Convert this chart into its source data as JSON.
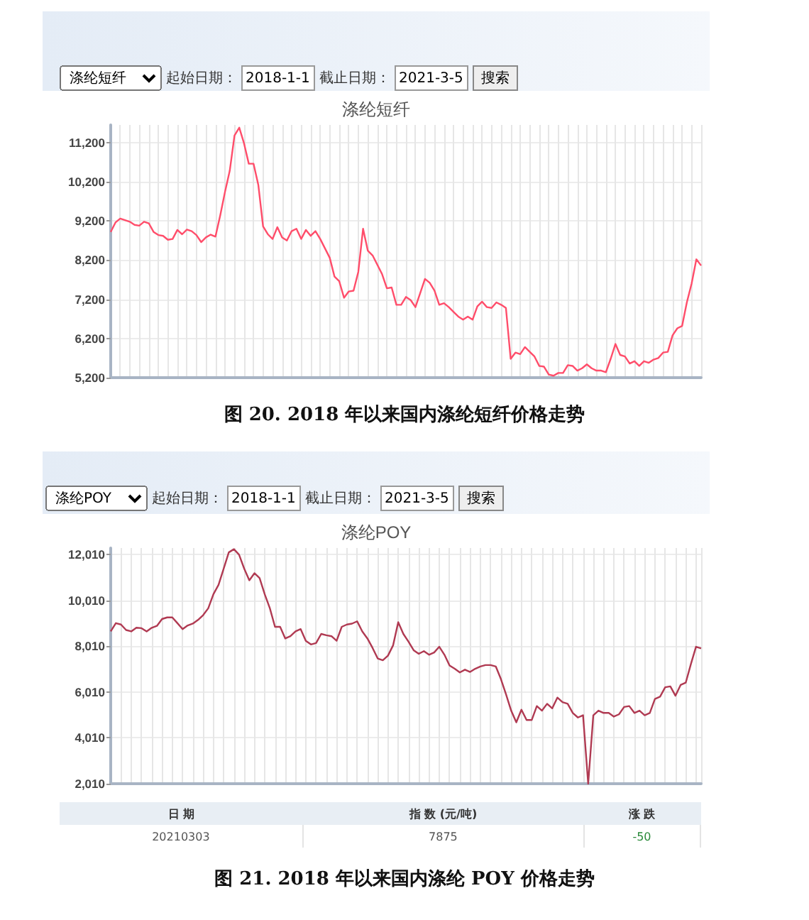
{
  "chart_data": [
    {
      "type": "line",
      "title": "涤纶短纤",
      "categories": [
        null,
        null,
        null,
        null,
        null,
        null,
        null,
        null,
        null,
        null,
        null,
        null,
        null,
        null,
        null,
        null,
        null,
        null,
        null,
        null,
        null,
        null,
        null,
        null,
        null,
        null,
        null,
        null,
        null,
        null,
        null,
        null,
        null,
        null,
        null,
        null,
        null,
        null,
        null,
        null,
        null,
        null,
        null,
        null,
        null,
        null,
        null,
        null,
        null,
        null,
        null,
        null,
        null,
        null,
        null,
        null,
        null,
        null,
        null,
        null,
        null,
        null,
        null,
        null,
        null,
        null,
        null,
        null,
        null,
        null,
        null,
        null,
        null,
        null,
        null,
        null,
        null,
        null,
        null,
        null,
        null,
        null,
        null,
        null,
        null,
        null,
        null,
        null,
        null,
        null,
        null,
        null,
        null,
        null,
        null,
        null,
        null,
        null,
        null,
        null,
        null,
        null,
        null,
        null,
        null,
        null,
        null,
        null,
        null,
        null,
        null,
        null,
        null,
        null,
        null,
        null,
        null,
        null,
        null,
        null,
        null,
        null,
        null,
        null,
        null
      ],
      "series": [
        {
          "color": "#ff4d6a",
          "values": [
            8920,
            9160,
            9260,
            9220,
            9180,
            9100,
            9080,
            9180,
            9140,
            8920,
            8840,
            8820,
            8720,
            8740,
            8970,
            8860,
            8980,
            8940,
            8840,
            8660,
            8780,
            8850,
            8800,
            9340,
            9940,
            10480,
            11380,
            11580,
            11180,
            10660,
            10660,
            10120,
            9060,
            8860,
            8740,
            9040,
            8780,
            8700,
            8940,
            9000,
            8740,
            8970,
            8820,
            8940,
            8740,
            8500,
            8260,
            7780,
            7660,
            7240,
            7400,
            7420,
            7900,
            9000,
            8440,
            8320,
            8080,
            7840,
            7480,
            7500,
            7060,
            7060,
            7260,
            7180,
            7000,
            7360,
            7720,
            7620,
            7420,
            7060,
            7100,
            7000,
            6880,
            6760,
            6680,
            6760,
            6680,
            7020,
            7140,
            7000,
            6980,
            7120,
            7060,
            6980,
            5680,
            5840,
            5800,
            5980,
            5860,
            5740,
            5500,
            5480,
            5280,
            5250,
            5320,
            5320,
            5520,
            5500,
            5380,
            5440,
            5540,
            5440,
            5380,
            5380,
            5340,
            5680,
            6060,
            5780,
            5740,
            5560,
            5620,
            5500,
            5620,
            5580,
            5660,
            5700,
            5840,
            5860,
            6280,
            6460,
            6520,
            7120,
            7600,
            8220,
            8060
          ]
        }
      ],
      "ylim": [
        5200,
        11650
      ],
      "yticks": [
        {
          "value": 5200,
          "label": "5,200"
        },
        {
          "value": 6200,
          "label": "6,200"
        },
        {
          "value": 7200,
          "label": "7,200"
        },
        {
          "value": 8200,
          "label": "8,200"
        },
        {
          "value": 9200,
          "label": "9,200"
        },
        {
          "value": 10200,
          "label": "10,200"
        },
        {
          "value": 11200,
          "label": "11,200"
        }
      ],
      "tick_labels": "y",
      "grid": true,
      "line_style": "solid",
      "annotations": [
        "涤纶短纤",
        "起始日期：",
        "2018-1-1",
        "截止日期：",
        "2021-3-5",
        "搜索",
        "图 20.    2018 年以来国内涤纶短纤价格走势"
      ]
    },
    {
      "type": "line",
      "title": "涤纶POY",
      "categories": [
        null,
        null,
        null,
        null,
        null,
        null,
        null,
        null,
        null,
        null,
        null,
        null,
        null,
        null,
        null,
        null,
        null,
        null,
        null,
        null,
        null,
        null,
        null,
        null,
        null,
        null,
        null,
        null,
        null,
        null,
        null,
        null,
        null,
        null,
        null,
        null,
        null,
        null,
        null,
        null,
        null,
        null,
        null,
        null,
        null,
        null,
        null,
        null,
        null,
        null,
        null,
        null,
        null,
        null,
        null,
        null,
        null,
        null,
        null,
        null,
        null,
        null,
        null,
        null,
        null,
        null,
        null,
        null,
        null,
        null,
        null,
        null,
        null,
        null,
        null,
        null,
        null,
        null,
        null,
        null,
        null,
        null,
        null,
        null,
        null,
        null,
        null,
        null,
        null,
        null,
        null,
        null,
        null,
        null,
        null,
        null,
        null,
        null,
        null,
        null,
        null,
        null,
        null,
        null,
        null,
        null,
        null,
        null,
        null,
        null,
        null,
        null,
        null,
        null,
        null,
        null
      ],
      "series": [
        {
          "color": "#b03a52",
          "values": [
            8660,
            9020,
            8960,
            8720,
            8660,
            8820,
            8800,
            8660,
            8820,
            8900,
            9200,
            9270,
            9270,
            9020,
            8760,
            8920,
            9000,
            9160,
            9370,
            9670,
            10280,
            10690,
            11400,
            12110,
            12250,
            12010,
            11400,
            10890,
            11200,
            10990,
            10280,
            9670,
            8860,
            8860,
            8350,
            8450,
            8660,
            8760,
            8250,
            8090,
            8150,
            8550,
            8490,
            8450,
            8250,
            8860,
            8960,
            9000,
            9100,
            8660,
            8350,
            7940,
            7480,
            7400,
            7600,
            8050,
            9060,
            8550,
            8210,
            7840,
            7680,
            7800,
            7640,
            7740,
            7990,
            7640,
            7170,
            7030,
            6870,
            6990,
            6890,
            7030,
            7130,
            7190,
            7190,
            7130,
            6580,
            5910,
            5200,
            4690,
            5240,
            4790,
            4790,
            5400,
            5200,
            5500,
            5300,
            5770,
            5570,
            5500,
            5100,
            4900,
            5000,
            2010,
            5000,
            5200,
            5100,
            5100,
            4940,
            5040,
            5360,
            5400,
            5100,
            5200,
            5000,
            5100,
            5710,
            5810,
            6220,
            6260,
            5850,
            6320,
            6420,
            7230,
            7990,
            7920
          ]
        }
      ],
      "ylim": [
        2010,
        12300
      ],
      "yticks": [
        {
          "value": 2010,
          "label": "2,010"
        },
        {
          "value": 4010,
          "label": "4,010"
        },
        {
          "value": 6010,
          "label": "6,010"
        },
        {
          "value": 8010,
          "label": "8,010"
        },
        {
          "value": 10010,
          "label": "10,010"
        },
        {
          "value": 12010,
          "label": "12,010"
        }
      ],
      "tick_labels": "y",
      "grid": true,
      "line_style": "solid",
      "annotations": [
        "涤纶POY",
        "起始日期：",
        "2018-1-1",
        "截止日期：",
        "2021-3-5",
        "搜索",
        "日 期",
        "指 数 (元/吨)",
        "涨 跌",
        "20210303",
        "7875",
        "-50",
        "图 21.    2018 年以来国内涤纶 POY 价格走势"
      ]
    }
  ]
}
